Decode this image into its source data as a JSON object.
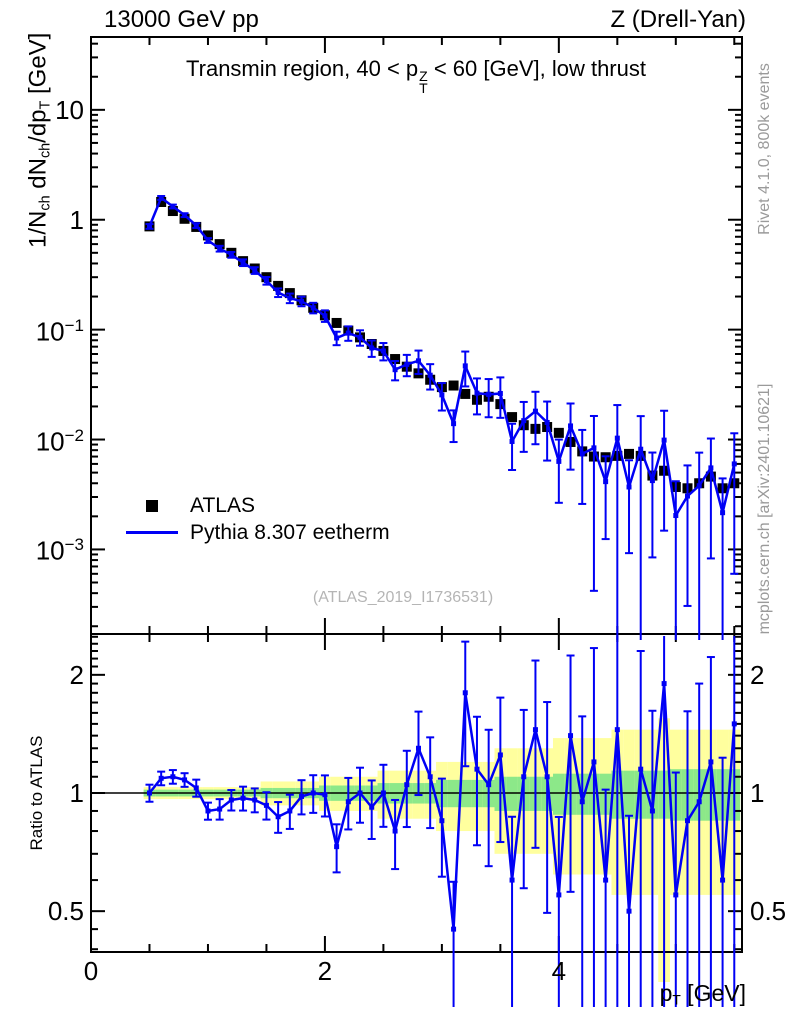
{
  "header": {
    "beam": "13000 GeV pp",
    "process": "Z (Drell-Yan)"
  },
  "side_labels": {
    "top": "Rivet 4.1.0,  800k events",
    "bottom": "mcplots.cern.ch [arXiv:2401.10621]"
  },
  "watermark": "(ATLAS_2019_I1736531)",
  "labels": {
    "title": {
      "prefix": "Transmin region, 40 < p",
      "sup": "Z",
      "sub": "T",
      "suffix": " < 60 [GeV], low thrust"
    },
    "y_main": [
      "1/N",
      "ch",
      " dN",
      "ch",
      "/dp",
      "T",
      " [GeV]"
    ],
    "y_ratio": "Ratio to ATLAS",
    "x": [
      "p",
      "T",
      " [GeV]"
    ]
  },
  "legend": [
    {
      "label": "ATLAS",
      "marker": "black-square"
    },
    {
      "label": "Pythia 8.307 eetherm",
      "marker": "blue-line"
    }
  ],
  "colors": {
    "data": "#000000",
    "mc": "#0000f5",
    "band_outer": "#ffff9e",
    "band_inner": "#8ce889",
    "frame": "#000000",
    "gray_text": "#9a9a9a",
    "watermark": "#b5b5b5"
  },
  "chart_data": {
    "type": "line",
    "title": "Transmin region, 40 < pTZ < 60 [GeV], low thrust",
    "xlabel": "pT [GeV]",
    "ylabel_main": "1/Nch dNch/dpT [GeV]",
    "ylabel_ratio": "Ratio to ATLAS",
    "x_axis_log": false,
    "y_axis_log": true,
    "xlim": [
      0,
      5.566
    ],
    "ylim_main": [
      0.00017,
      46
    ],
    "ylim_ratio": [
      0.3935,
      2.5413
    ],
    "bin_width": 0.1,
    "x": [
      0.5,
      0.6,
      0.7,
      0.8,
      0.9,
      1.0,
      1.1,
      1.2,
      1.3,
      1.4,
      1.5,
      1.6,
      1.7,
      1.8,
      1.9,
      2.0,
      2.1,
      2.2,
      2.3,
      2.4,
      2.5,
      2.6,
      2.7,
      2.8,
      2.9,
      3.0,
      3.1,
      3.2,
      3.3,
      3.4,
      3.5,
      3.6,
      3.7,
      3.8,
      3.9,
      4.0,
      4.1,
      4.2,
      4.3,
      4.4,
      4.5,
      4.6,
      4.7,
      4.8,
      4.9,
      5.0,
      5.1,
      5.2,
      5.3,
      5.4,
      5.5
    ],
    "atlas_values": [
      0.87,
      1.45,
      1.2,
      1.02,
      0.86,
      0.72,
      0.6,
      0.5,
      0.42,
      0.36,
      0.3,
      0.25,
      0.215,
      0.185,
      0.158,
      0.135,
      0.115,
      0.098,
      0.085,
      0.074,
      0.064,
      0.054,
      0.046,
      0.04,
      0.035,
      0.03,
      0.031,
      0.026,
      0.023,
      0.0245,
      0.021,
      0.016,
      0.0135,
      0.0125,
      0.013,
      0.0115,
      0.0095,
      0.0078,
      0.007,
      0.0069,
      0.0071,
      0.0074,
      0.0071,
      0.0047,
      0.0052,
      0.0037,
      0.0036,
      0.004,
      0.0046,
      0.0036,
      0.004
    ],
    "pythia_ratio_to_atlas": [
      1.0,
      1.09,
      1.1,
      1.08,
      1.03,
      0.9,
      0.91,
      0.96,
      0.97,
      0.96,
      0.93,
      0.87,
      0.9,
      0.98,
      1.0,
      0.99,
      0.73,
      0.95,
      1.0,
      0.92,
      1.0,
      0.8,
      1.05,
      1.3,
      1.1,
      0.85,
      0.45,
      1.8,
      1.15,
      1.05,
      1.25,
      0.6,
      1.1,
      1.45,
      1.1,
      0.55,
      1.4,
      0.95,
      1.2,
      0.6,
      1.45,
      0.5,
      1.15,
      0.9,
      1.9,
      0.55,
      0.85,
      0.95,
      1.2,
      0.6,
      1.5
    ],
    "pythia_err_frac": [
      0.05,
      0.04,
      0.04,
      0.04,
      0.05,
      0.05,
      0.06,
      0.06,
      0.07,
      0.07,
      0.08,
      0.09,
      0.1,
      0.1,
      0.11,
      0.12,
      0.14,
      0.15,
      0.16,
      0.17,
      0.18,
      0.2,
      0.22,
      0.24,
      0.26,
      0.28,
      0.32,
      0.35,
      0.36,
      0.38,
      0.4,
      0.45,
      0.48,
      0.5,
      0.55,
      0.58,
      0.6,
      0.65,
      0.95,
      0.7,
      1.0,
      0.75,
      1.0,
      0.8,
      0.85,
      1.05,
      0.9,
      1.0,
      0.85,
      1.05,
      0.9
    ],
    "band_inner_frac": [
      0.02,
      0.02,
      0.02,
      0.02,
      0.02,
      0.02,
      0.02,
      0.02,
      0.02,
      0.02,
      0.03,
      0.03,
      0.03,
      0.03,
      0.03,
      0.045,
      0.045,
      0.045,
      0.045,
      0.045,
      0.06,
      0.06,
      0.06,
      0.06,
      0.06,
      0.08,
      0.08,
      0.08,
      0.08,
      0.08,
      0.1,
      0.1,
      0.1,
      0.1,
      0.1,
      0.12,
      0.12,
      0.12,
      0.12,
      0.12,
      0.14,
      0.14,
      0.14,
      0.14,
      0.14,
      0.15,
      0.15,
      0.15,
      0.15,
      0.15,
      0.15
    ],
    "band_outer_up_frac": [
      0.035,
      0.035,
      0.035,
      0.035,
      0.035,
      0.035,
      0.035,
      0.035,
      0.035,
      0.035,
      0.07,
      0.07,
      0.07,
      0.07,
      0.07,
      0.1,
      0.1,
      0.1,
      0.1,
      0.1,
      0.14,
      0.14,
      0.14,
      0.14,
      0.14,
      0.2,
      0.2,
      0.2,
      0.2,
      0.2,
      0.3,
      0.3,
      0.3,
      0.3,
      0.3,
      0.38,
      0.38,
      0.38,
      0.38,
      0.38,
      0.45,
      0.45,
      0.45,
      0.45,
      0.55,
      0.45,
      0.45,
      0.45,
      0.45,
      0.45,
      0.45
    ],
    "band_outer_dn_frac": [
      0.035,
      0.035,
      0.035,
      0.035,
      0.035,
      0.035,
      0.035,
      0.035,
      0.035,
      0.035,
      0.07,
      0.07,
      0.07,
      0.07,
      0.07,
      0.1,
      0.1,
      0.1,
      0.1,
      0.1,
      0.14,
      0.14,
      0.14,
      0.14,
      0.14,
      0.2,
      0.2,
      0.2,
      0.2,
      0.2,
      0.3,
      0.3,
      0.3,
      0.3,
      0.3,
      0.38,
      0.38,
      0.38,
      0.38,
      0.38,
      0.45,
      0.45,
      0.45,
      0.45,
      1.02,
      0.45,
      0.45,
      0.45,
      0.45,
      0.45,
      0.45
    ],
    "xticks_major": [
      {
        "v": 0,
        "label": "0"
      },
      {
        "v": 2,
        "label": "2"
      },
      {
        "v": 4,
        "label": "4"
      }
    ],
    "xtick_minor_step": 0.5,
    "yticks_main": [
      {
        "v": 10,
        "m": "10",
        "e": ""
      },
      {
        "v": 1,
        "m": "1",
        "e": ""
      },
      {
        "v": 0.1,
        "m": "10",
        "e": "−1"
      },
      {
        "v": 0.01,
        "m": "10",
        "e": "−2"
      },
      {
        "v": 0.001,
        "m": "10",
        "e": "−3"
      }
    ],
    "yticks_ratio": [
      {
        "v": 0.5,
        "label": "0.5"
      },
      {
        "v": 1,
        "label": "1"
      },
      {
        "v": 2,
        "label": "2"
      }
    ],
    "yticks_ratio_minor": [
      0.4,
      0.45,
      0.6,
      0.7,
      0.8,
      0.9,
      1.1,
      1.2,
      1.3,
      1.4,
      1.5,
      1.6,
      1.7,
      1.8,
      1.9,
      2.1,
      2.2,
      2.3,
      2.4,
      2.5
    ],
    "legend_entries": [
      "ATLAS",
      "Pythia 8.307 eetherm"
    ]
  }
}
